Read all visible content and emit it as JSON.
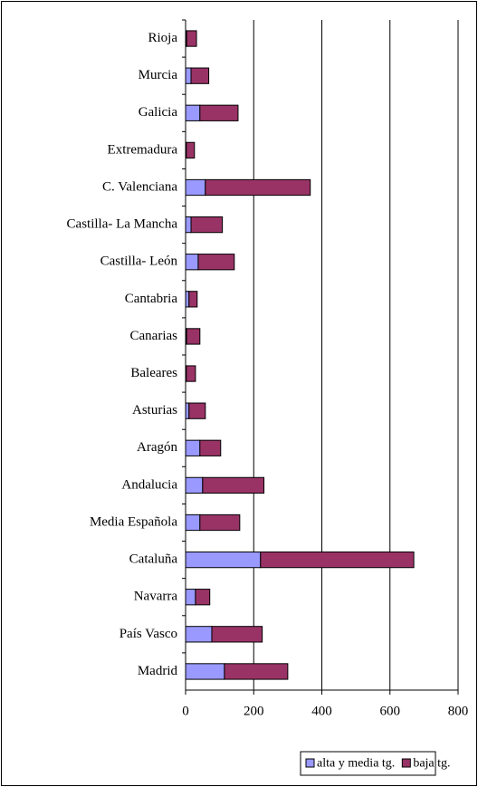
{
  "chart_data": {
    "type": "stacked_bar_horizontal",
    "categories": [
      "Rioja",
      "Murcia",
      "Galicia",
      "Extremadura",
      "C. Valenciana",
      "Castilla- La Mancha",
      "Castilla- León",
      "Cantabria",
      "Canarias",
      "Baleares",
      "Asturias",
      "Aragón",
      "Andalucia",
      "Media Española",
      "Cataluña",
      "Navarra",
      "País Vasco",
      "Madrid"
    ],
    "series": [
      {
        "name": "alta y media tg.",
        "color": "#9999ff",
        "values": [
          3,
          16,
          42,
          2,
          58,
          16,
          37,
          10,
          3,
          2,
          10,
          42,
          50,
          42,
          220,
          29,
          77,
          114
        ]
      },
      {
        "name": "baja tg.",
        "color": "#993366",
        "values": [
          29,
          52,
          112,
          24,
          308,
          92,
          106,
          24,
          39,
          27,
          48,
          61,
          180,
          117,
          450,
          42,
          148,
          186
        ]
      }
    ],
    "xlim": [
      0,
      800
    ],
    "xticks": [
      0,
      200,
      400,
      600,
      800
    ],
    "grid": true,
    "legend": "bottom"
  }
}
